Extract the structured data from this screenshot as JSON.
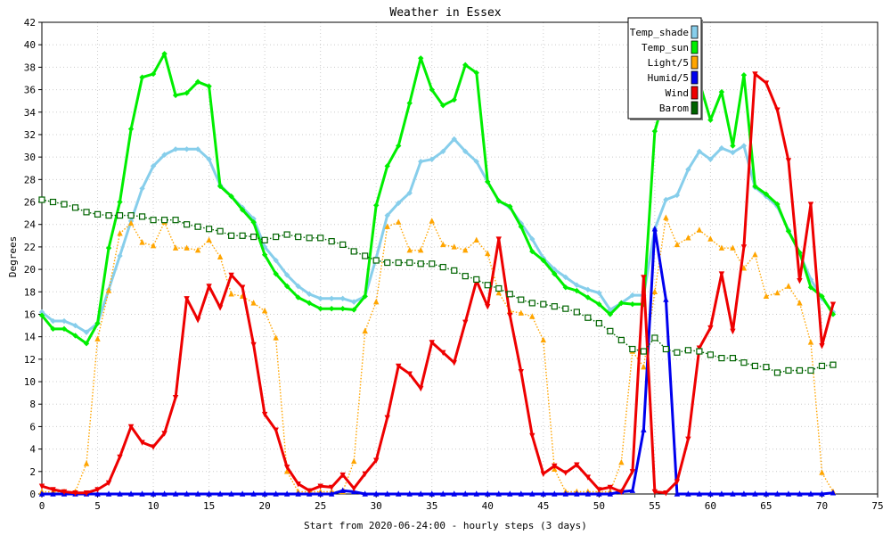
{
  "chart_data": {
    "type": "line",
    "title": "Weather in Essex",
    "xlabel": "Start from 2020-06-24:00 - hourly steps (3 days)",
    "ylabel": "Degrees",
    "xlim": [
      0,
      75
    ],
    "ylim": [
      0,
      42
    ],
    "xticks": [
      0,
      5,
      10,
      15,
      20,
      25,
      30,
      35,
      40,
      45,
      50,
      55,
      60,
      65,
      70,
      75
    ],
    "yticks": [
      0,
      2,
      4,
      6,
      8,
      10,
      12,
      14,
      16,
      18,
      20,
      22,
      24,
      26,
      28,
      30,
      32,
      34,
      36,
      38,
      40,
      42
    ],
    "grid": true,
    "legend_position": "top-right",
    "series": [
      {
        "name": "Temp_shade",
        "color": "#87ceeb",
        "marker": "diamond",
        "dash": false,
        "width": 3,
        "values": [
          16.2,
          15.4,
          15.4,
          15.0,
          14.4,
          15.2,
          18.2,
          21.2,
          24.3,
          27.2,
          29.2,
          30.2,
          30.7,
          30.7,
          30.7,
          29.8,
          27.5,
          26.5,
          25.5,
          24.5,
          22.0,
          20.8,
          19.5,
          18.5,
          17.8,
          17.4,
          17.4,
          17.4,
          17.1,
          17.6,
          21.0,
          24.8,
          25.9,
          26.8,
          29.6,
          29.8,
          30.5,
          31.6,
          30.5,
          29.6,
          27.8,
          26.1,
          25.5,
          24.1,
          22.7,
          21.0,
          20.0,
          19.3,
          18.6,
          18.2,
          17.9,
          16.4,
          17.0,
          17.7,
          17.7,
          23.6,
          26.2,
          26.6,
          28.9,
          30.5,
          29.8,
          30.8,
          30.4,
          31.0,
          27.3,
          26.5,
          25.6,
          23.5,
          21.4,
          19.1,
          17.4,
          16.2
        ]
      },
      {
        "name": "Temp_sun",
        "color": "#00ee00",
        "marker": "diamond",
        "dash": false,
        "width": 3,
        "values": [
          15.9,
          14.7,
          14.7,
          14.1,
          13.4,
          15.2,
          21.9,
          26.0,
          32.5,
          37.1,
          37.4,
          39.2,
          35.5,
          35.7,
          36.7,
          36.3,
          27.4,
          26.5,
          25.3,
          24.2,
          21.3,
          19.6,
          18.5,
          17.5,
          17.0,
          16.5,
          16.5,
          16.5,
          16.4,
          17.6,
          25.7,
          29.2,
          31.0,
          34.8,
          38.8,
          36.0,
          34.6,
          35.1,
          38.2,
          37.5,
          27.8,
          26.1,
          25.6,
          23.8,
          21.6,
          20.8,
          19.6,
          18.4,
          18.1,
          17.5,
          16.9,
          16.0,
          17.0,
          16.9,
          16.9,
          32.3,
          35.8,
          36.7,
          36.7,
          36.7,
          33.3,
          35.8,
          31.0,
          37.3,
          27.4,
          26.7,
          25.8,
          23.4,
          21.5,
          18.4,
          17.6,
          16.0
        ]
      },
      {
        "name": "Light/5",
        "color": "#ffa500",
        "marker": "triangle-up",
        "dash": true,
        "width": 1.4,
        "values": [
          0.2,
          0.2,
          0.2,
          0.2,
          2.7,
          13.8,
          18.1,
          23.2,
          24.1,
          22.4,
          22.1,
          24.2,
          21.9,
          21.9,
          21.7,
          22.6,
          21.1,
          17.8,
          17.6,
          17.0,
          16.3,
          13.9,
          2.0,
          0.2,
          0.2,
          0.2,
          0.2,
          0.2,
          2.9,
          14.5,
          17.1,
          23.8,
          24.2,
          21.7,
          21.7,
          24.3,
          22.2,
          22.0,
          21.7,
          22.6,
          21.4,
          17.9,
          16.3,
          16.1,
          15.8,
          13.7,
          2.2,
          0.2,
          0.2,
          0.2,
          0.2,
          0.2,
          2.8,
          12.7,
          11.3,
          18.0,
          24.6,
          22.2,
          22.8,
          23.5,
          22.7,
          21.9,
          21.9,
          20.1,
          21.3,
          17.6,
          17.9,
          18.5,
          17.0,
          13.5,
          1.9,
          0.2
        ]
      },
      {
        "name": "Humid/5",
        "color": "#0000ee",
        "marker": "triangle-up",
        "dash": false,
        "width": 3,
        "values": [
          0,
          0,
          0,
          0,
          0,
          0,
          0,
          0,
          0,
          0,
          0,
          0,
          0,
          0,
          0,
          0,
          0,
          0,
          0,
          0,
          0,
          0,
          0,
          0,
          0,
          0,
          0,
          0.3,
          0.2,
          0,
          0,
          0,
          0,
          0,
          0,
          0,
          0,
          0,
          0,
          0,
          0,
          0,
          0,
          0,
          0,
          0,
          0,
          0,
          0,
          0,
          0,
          0,
          0.2,
          0.3,
          5.7,
          23.6,
          17.3,
          0,
          0,
          0,
          0,
          0,
          0,
          0,
          0,
          0,
          0,
          0,
          0,
          0,
          0,
          0.1
        ]
      },
      {
        "name": "Wind",
        "color": "#ee0000",
        "marker": "triangle-down",
        "dash": false,
        "width": 3,
        "values": [
          0.7,
          0.4,
          0.2,
          0.1,
          0.1,
          0.4,
          1.0,
          3.3,
          6.0,
          4.6,
          4.2,
          5.4,
          8.6,
          17.4,
          15.5,
          18.5,
          16.6,
          19.5,
          18.4,
          13.3,
          7.1,
          5.7,
          2.4,
          0.9,
          0.3,
          0.7,
          0.6,
          1.7,
          0.5,
          1.8,
          3.0,
          6.8,
          11.4,
          10.7,
          9.4,
          13.5,
          12.6,
          11.7,
          15.3,
          19.0,
          16.7,
          22.7,
          15.9,
          10.9,
          5.2,
          1.8,
          2.5,
          1.9,
          2.6,
          1.5,
          0.4,
          0.6,
          0.2,
          2.0,
          19.3,
          0.2,
          0.1,
          1.1,
          4.9,
          13.0,
          14.8,
          19.6,
          14.5,
          22.0,
          37.4,
          36.6,
          34.2,
          29.7,
          19.0,
          25.8,
          13.2,
          16.9
        ]
      },
      {
        "name": "Barom",
        "color": "#006400",
        "marker": "square-open",
        "dash": true,
        "width": 1.4,
        "values": [
          26.2,
          26.0,
          25.8,
          25.5,
          25.1,
          24.9,
          24.8,
          24.8,
          24.8,
          24.7,
          24.4,
          24.4,
          24.4,
          24.0,
          23.8,
          23.6,
          23.4,
          23.0,
          23.0,
          22.9,
          22.6,
          22.9,
          23.1,
          22.9,
          22.8,
          22.8,
          22.5,
          22.2,
          21.6,
          21.2,
          20.8,
          20.6,
          20.6,
          20.6,
          20.5,
          20.5,
          20.2,
          19.9,
          19.4,
          19.1,
          18.6,
          18.3,
          17.8,
          17.3,
          17.0,
          16.9,
          16.7,
          16.5,
          16.2,
          15.7,
          15.2,
          14.5,
          13.7,
          12.9,
          12.7,
          13.9,
          12.9,
          12.6,
          12.8,
          12.7,
          12.4,
          12.1,
          12.1,
          11.7,
          11.4,
          11.3,
          10.8,
          11.0,
          11.0,
          11.0,
          11.4,
          11.5
        ]
      }
    ]
  }
}
